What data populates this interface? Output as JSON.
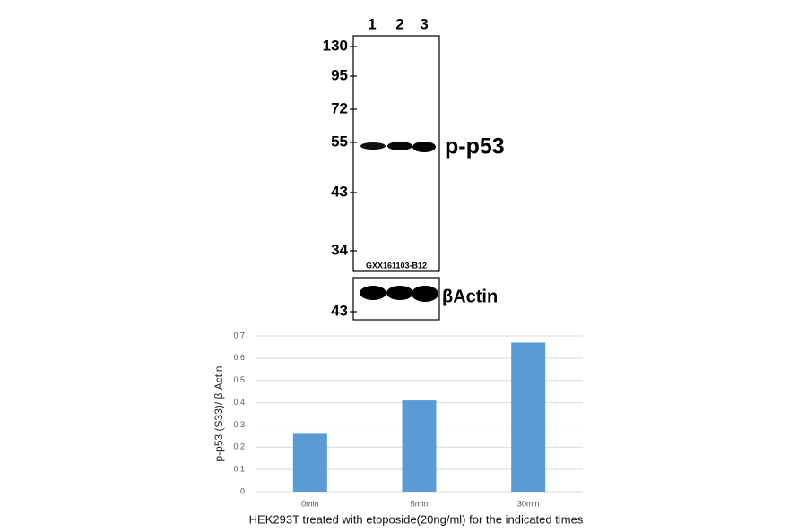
{
  "blot": {
    "lanes": [
      "1",
      "2",
      "3"
    ],
    "markers": [
      "130",
      "95",
      "72",
      "55",
      "43",
      "34"
    ],
    "target_label": "p-p53",
    "lot": "GXX161103-B12",
    "control_label": "βActin",
    "control_marker": "43"
  },
  "chart_data": {
    "type": "bar",
    "categories": [
      "0min",
      "5min",
      "30min"
    ],
    "values": [
      0.26,
      0.41,
      0.67
    ],
    "color": "#5b9bd5",
    "ylim": [
      0,
      0.7
    ],
    "yticks": [
      0,
      0.1,
      0.2,
      0.3,
      0.4,
      0.5,
      0.6,
      0.7
    ],
    "grid": true,
    "y_label": "p-p53 (S33)/ β Actin",
    "x_label": "HEK293T treated with etoposide(20ng/ml) for the indicated times"
  }
}
